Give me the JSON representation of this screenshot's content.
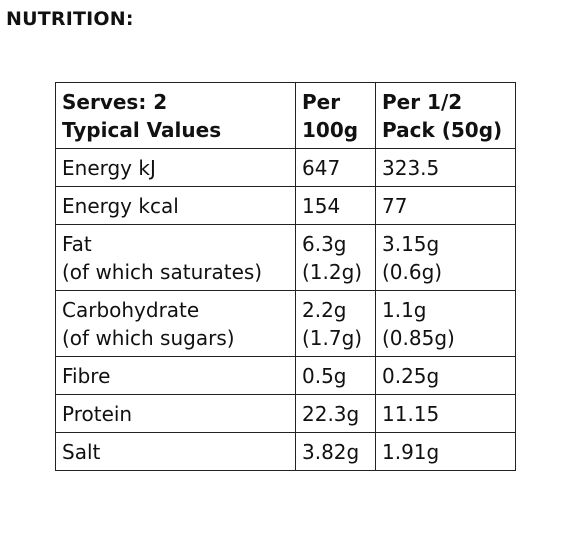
{
  "heading": "NUTRITION:",
  "table": {
    "headers": [
      [
        "Serves: 2",
        "Typical Values"
      ],
      [
        "Per",
        "100g"
      ],
      [
        "Per 1/2",
        "Pack (50g)"
      ]
    ],
    "rows": [
      {
        "cells": [
          [
            "Energy kJ"
          ],
          [
            "647"
          ],
          [
            "323.5"
          ]
        ]
      },
      {
        "cells": [
          [
            "Energy kcal"
          ],
          [
            "154"
          ],
          [
            "77"
          ]
        ]
      },
      {
        "cells": [
          [
            "Fat",
            "(of which saturates)"
          ],
          [
            "6.3g",
            "(1.2g)"
          ],
          [
            "3.15g",
            "(0.6g)"
          ]
        ]
      },
      {
        "cells": [
          [
            "Carbohydrate",
            "(of which sugars)"
          ],
          [
            "2.2g",
            "(1.7g)"
          ],
          [
            "1.1g",
            "(0.85g)"
          ]
        ]
      },
      {
        "cells": [
          [
            "Fibre"
          ],
          [
            "0.5g"
          ],
          [
            "0.25g"
          ]
        ]
      },
      {
        "cells": [
          [
            "Protein"
          ],
          [
            "22.3g"
          ],
          [
            "11.15"
          ]
        ]
      },
      {
        "cells": [
          [
            "Salt"
          ],
          [
            "3.82g"
          ],
          [
            "1.91g"
          ]
        ]
      }
    ]
  }
}
